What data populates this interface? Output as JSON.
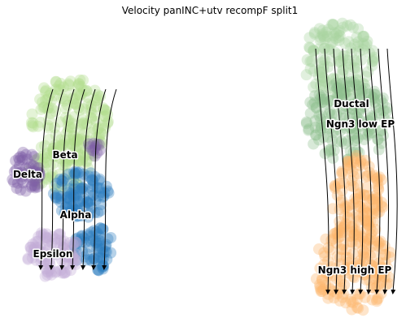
{
  "chart_data": {
    "type": "scatter",
    "title": "Velocity panINC+utv recompF split1",
    "clusters": [
      {
        "name": "Ductal",
        "color": "#a8d3a0"
      },
      {
        "name": "Ngn3 low EP",
        "color": "#8fc18f"
      },
      {
        "name": "Ngn3 high EP",
        "color": "#fdb46b"
      },
      {
        "name": "Beta",
        "color": "#b3de8c"
      },
      {
        "name": "Delta",
        "color": "#7f5fa6"
      },
      {
        "name": "Alpha",
        "color": "#2f7fbf"
      },
      {
        "name": "Epsilon",
        "color": "#c4add8"
      }
    ]
  }
}
